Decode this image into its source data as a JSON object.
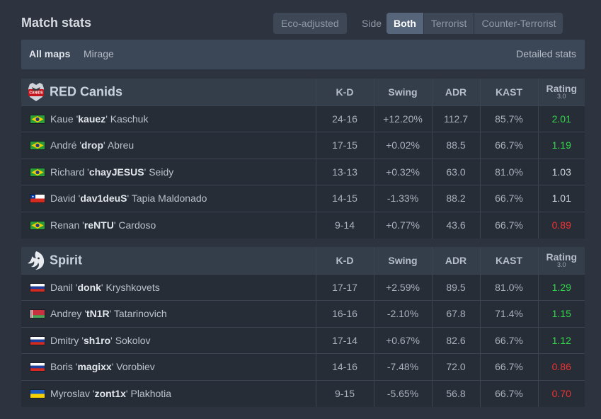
{
  "header": {
    "title": "Match stats",
    "eco_label": "Eco-adjusted",
    "side_label": "Side",
    "side_options": [
      "Both",
      "Terrorist",
      "Counter-Terrorist"
    ],
    "side_selected": "Both"
  },
  "mapbar": {
    "active": "All maps",
    "other": "Mirage",
    "detailed": "Detailed stats"
  },
  "columns": {
    "kd": "K-D",
    "swing": "Swing",
    "adr": "ADR",
    "kast": "KAST",
    "rating": "Rating",
    "rating_version": "3.0"
  },
  "teams": [
    {
      "name": "RED Canids",
      "logo_icon": "red-canids-logo",
      "players": [
        {
          "flag": "brazil",
          "first": "Kaue",
          "nick": "kauez",
          "last": "Kaschuk",
          "kd": "24-16",
          "swing": "+12.20%",
          "swing_sign": "pos",
          "adr": "112.7",
          "kast": "85.7%",
          "rating": "2.01",
          "rating_class": "good"
        },
        {
          "flag": "brazil",
          "first": "André",
          "nick": "drop",
          "last": "Abreu",
          "kd": "17-15",
          "swing": "+0.02%",
          "swing_sign": "neu",
          "adr": "88.5",
          "kast": "66.7%",
          "rating": "1.19",
          "rating_class": "good"
        },
        {
          "flag": "brazil",
          "first": "Richard",
          "nick": "chayJESUS",
          "last": "Seidy",
          "kd": "13-13",
          "swing": "+0.32%",
          "swing_sign": "neu",
          "adr": "63.0",
          "kast": "81.0%",
          "rating": "1.03",
          "rating_class": "mid"
        },
        {
          "flag": "chile",
          "first": "David",
          "nick": "dav1deuS",
          "last": "Tapia Maldonado",
          "kd": "14-15",
          "swing": "-1.33%",
          "swing_sign": "neg",
          "adr": "88.2",
          "kast": "66.7%",
          "rating": "1.01",
          "rating_class": "mid"
        },
        {
          "flag": "brazil",
          "first": "Renan",
          "nick": "reNTU",
          "last": "Cardoso",
          "kd": "9-14",
          "swing": "+0.77%",
          "swing_sign": "neu",
          "adr": "43.6",
          "kast": "66.7%",
          "rating": "0.89",
          "rating_class": "bad"
        }
      ]
    },
    {
      "name": "Spirit",
      "logo_icon": "spirit-logo",
      "players": [
        {
          "flag": "russia",
          "first": "Danil",
          "nick": "donk",
          "last": "Kryshkovets",
          "kd": "17-17",
          "swing": "+2.59%",
          "swing_sign": "pos",
          "adr": "89.5",
          "kast": "81.0%",
          "rating": "1.29",
          "rating_class": "good"
        },
        {
          "flag": "belarus",
          "first": "Andrey",
          "nick": "tN1R",
          "last": "Tatarinovich",
          "kd": "16-16",
          "swing": "-2.10%",
          "swing_sign": "neg",
          "adr": "67.8",
          "kast": "71.4%",
          "rating": "1.15",
          "rating_class": "good"
        },
        {
          "flag": "russia",
          "first": "Dmitry",
          "nick": "sh1ro",
          "last": "Sokolov",
          "kd": "17-14",
          "swing": "+0.67%",
          "swing_sign": "neu",
          "adr": "82.6",
          "kast": "66.7%",
          "rating": "1.12",
          "rating_class": "good"
        },
        {
          "flag": "russia",
          "first": "Boris",
          "nick": "magixx",
          "last": "Vorobiev",
          "kd": "14-16",
          "swing": "-7.48%",
          "swing_sign": "neg",
          "adr": "72.0",
          "kast": "66.7%",
          "rating": "0.86",
          "rating_class": "bad"
        },
        {
          "flag": "ukraine",
          "first": "Myroslav",
          "nick": "zont1x",
          "last": "Plakhotia",
          "kd": "9-15",
          "swing": "-5.65%",
          "swing_sign": "neg",
          "adr": "56.8",
          "kast": "66.7%",
          "rating": "0.70",
          "rating_class": "bad"
        }
      ]
    }
  ],
  "colors": {
    "background": "#2d3440",
    "positive": "#35c94a",
    "negative": "#e0393e",
    "rating_good": "#35d64c",
    "rating_bad": "#ee3333"
  }
}
